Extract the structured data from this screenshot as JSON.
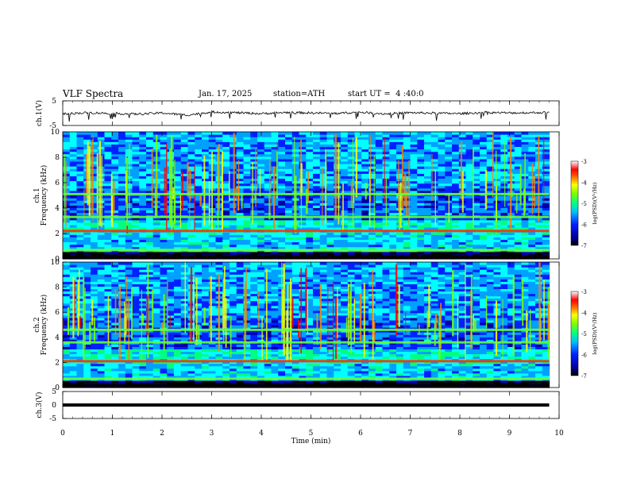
{
  "header": {
    "title": "VLF Spectra",
    "date": "Jan. 17, 2025",
    "station": "station=ATH",
    "start": "start UT =  4 :40:0"
  },
  "chart_data": [
    {
      "type": "line",
      "id": "ch1_waveform",
      "ylabel": "ch.1(V)",
      "ylim": [
        -5,
        5
      ],
      "yticks": [
        "5",
        "-5"
      ],
      "x": [
        0,
        0.5,
        1,
        1.5,
        2,
        2.5,
        3,
        3.5,
        4,
        4.5,
        5,
        5.5,
        6,
        6.5,
        7,
        7.5,
        8,
        8.5,
        9,
        9.5,
        9.8
      ],
      "values": [
        -0.3,
        0.2,
        -0.1,
        -0.4,
        0.1,
        -0.8,
        0.5,
        0.2,
        -0.2,
        0.3,
        0.1,
        -0.1,
        0.4,
        -0.3,
        0.2,
        0.0,
        -0.2,
        0.3,
        0.1,
        0.2,
        0.3
      ],
      "color": "#000000"
    },
    {
      "type": "heatmap",
      "id": "ch1_spectrogram",
      "ylabel": "ch.1\nFrequency (kHz)",
      "yticks": [
        "0",
        "2",
        "4",
        "6",
        "8",
        "10"
      ],
      "ylim": [
        0,
        10
      ],
      "xlim": [
        0,
        9.8
      ],
      "bands_khz": [
        0.7,
        2.2,
        3.3,
        5.1
      ],
      "colorbar": {
        "label": "log(PSD)(V²/Hz)",
        "ticks": [
          "-3",
          "-4",
          "-5",
          "-6",
          "-7"
        ],
        "range": [
          -7,
          -3
        ]
      }
    },
    {
      "type": "heatmap",
      "id": "ch2_spectrogram",
      "ylabel": "ch.2\nFrequency (kHz)",
      "yticks": [
        "0",
        "2",
        "4",
        "6",
        "8",
        "10"
      ],
      "ylim": [
        0,
        10
      ],
      "xlim": [
        0,
        9.8
      ],
      "bands_khz": [
        0.7,
        2.1,
        3.6,
        4.6
      ],
      "colorbar": {
        "label": "log(PSD)(V²/Hz)",
        "ticks": [
          "-3",
          "-4",
          "-5",
          "-6",
          "-7"
        ],
        "range": [
          -7,
          -3
        ]
      }
    },
    {
      "type": "line",
      "id": "ch3_waveform",
      "ylabel": "ch.3(V)",
      "ylim": [
        -5,
        5
      ],
      "yticks": [
        "5",
        "0",
        "-5"
      ],
      "x": [
        0,
        9.8
      ],
      "values": [
        0,
        0
      ],
      "color": "#000000"
    }
  ],
  "xaxis": {
    "label": "Time (min)",
    "ticks": [
      "0",
      "1",
      "2",
      "3",
      "4",
      "5",
      "6",
      "7",
      "8",
      "9",
      "10"
    ],
    "xlim": [
      0,
      10
    ]
  },
  "colors": {
    "colormap": [
      "#000000",
      "#0000a0",
      "#0020ff",
      "#00a0ff",
      "#00ffff",
      "#00ff80",
      "#80ff00",
      "#ffff00",
      "#ff8000",
      "#ff0000",
      "#ff80a0",
      "#ffffff"
    ]
  }
}
